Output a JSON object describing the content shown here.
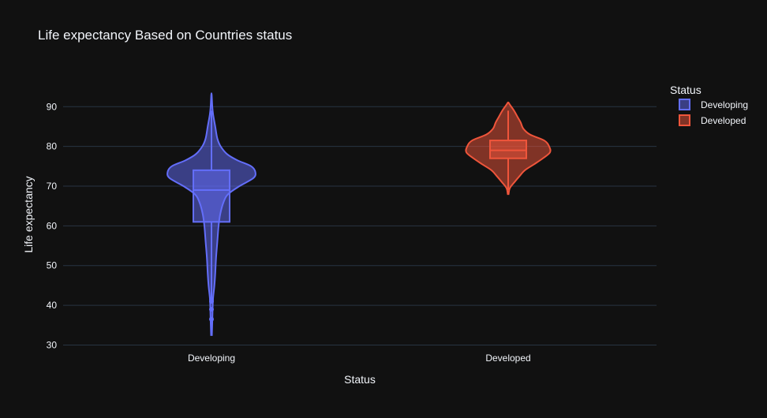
{
  "chart_data": {
    "type": "violin",
    "title": "Life expectancy Based on Countries status",
    "xlabel": "Status",
    "ylabel": "Life expectancy",
    "categories": [
      "Developing",
      "Developed"
    ],
    "ylim": [
      29.5,
      97
    ],
    "yticks": [
      30,
      40,
      50,
      60,
      70,
      80,
      90
    ],
    "grid": true,
    "legend": {
      "title": "Status",
      "position": "top-right"
    },
    "series": [
      {
        "name": "Developing",
        "color": "#636efa",
        "box": {
          "q1": 61,
          "median": 69,
          "q3": 74,
          "whisker_low": 42,
          "whisker_high": 89
        },
        "outliers": [
          41.5,
          41,
          39,
          36.5
        ],
        "range": [
          32.5,
          93
        ],
        "density": [
          [
            32.5,
            0.01
          ],
          [
            36,
            0.02
          ],
          [
            40,
            0.03
          ],
          [
            42,
            0.04
          ],
          [
            45,
            0.07
          ],
          [
            48,
            0.09
          ],
          [
            52,
            0.11
          ],
          [
            56,
            0.14
          ],
          [
            60,
            0.17
          ],
          [
            63,
            0.21
          ],
          [
            66,
            0.29
          ],
          [
            68,
            0.4
          ],
          [
            70,
            0.67
          ],
          [
            72,
            1.0
          ],
          [
            73.5,
            1.05
          ],
          [
            75,
            0.95
          ],
          [
            76.5,
            0.62
          ],
          [
            78,
            0.38
          ],
          [
            80,
            0.22
          ],
          [
            82,
            0.14
          ],
          [
            85,
            0.09
          ],
          [
            88,
            0.04
          ],
          [
            90,
            0.02
          ],
          [
            93,
            0.005
          ]
        ]
      },
      {
        "name": "Developed",
        "color": "#ef553b",
        "box": {
          "q1": 77,
          "median": 79,
          "q3": 81.5,
          "whisker_low": 69,
          "whisker_high": 89
        },
        "outliers": [],
        "range": [
          68,
          91
        ],
        "density": [
          [
            68,
            0.01
          ],
          [
            69.5,
            0.04
          ],
          [
            71,
            0.15
          ],
          [
            72.5,
            0.27
          ],
          [
            74,
            0.4
          ],
          [
            75.5,
            0.62
          ],
          [
            77,
            0.83
          ],
          [
            78.5,
            1.0
          ],
          [
            80,
            0.98
          ],
          [
            81.5,
            0.86
          ],
          [
            83,
            0.52
          ],
          [
            84.5,
            0.36
          ],
          [
            86,
            0.3
          ],
          [
            87.5,
            0.22
          ],
          [
            89,
            0.14
          ],
          [
            90.5,
            0.04
          ],
          [
            91,
            0.01
          ]
        ]
      }
    ]
  }
}
